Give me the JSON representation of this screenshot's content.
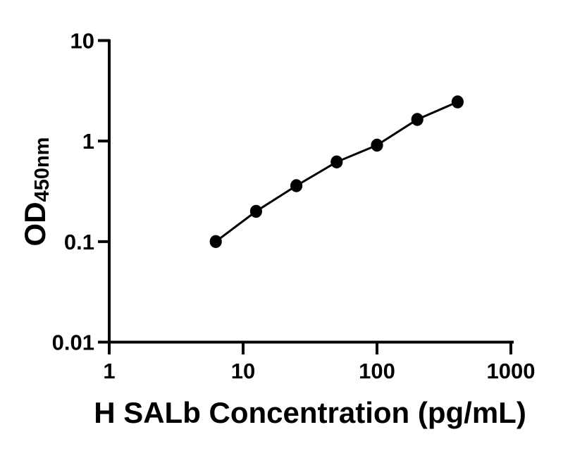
{
  "figure": {
    "background_color": "#ffffff",
    "foreground_color": "#000000"
  },
  "chart_data": {
    "type": "scatter",
    "title": "",
    "x": [
      6.25,
      12.5,
      25,
      50,
      100,
      200,
      400
    ],
    "y": [
      0.1,
      0.2,
      0.36,
      0.62,
      0.91,
      1.64,
      2.45
    ],
    "xlabel": "H SALb Concentration (pg/mL)",
    "ylabel_main": "OD",
    "ylabel_sub": "450nm",
    "x_scale": "log",
    "y_scale": "log",
    "xlim": [
      1,
      1000
    ],
    "ylim": [
      0.01,
      10
    ],
    "x_ticks": [
      1,
      10,
      100,
      1000
    ],
    "x_tick_labels": [
      "1",
      "10",
      "100",
      "1000"
    ],
    "y_ticks": [
      10,
      1,
      0.1,
      0.01
    ],
    "y_tick_labels": [
      "10",
      "1",
      "0.1",
      "0.01"
    ],
    "grid": false,
    "legend": "none",
    "marker": "filled-circle",
    "line_style": "solid",
    "point_color": "#000000",
    "line_color": "#000000",
    "axis_color": "#000000"
  }
}
